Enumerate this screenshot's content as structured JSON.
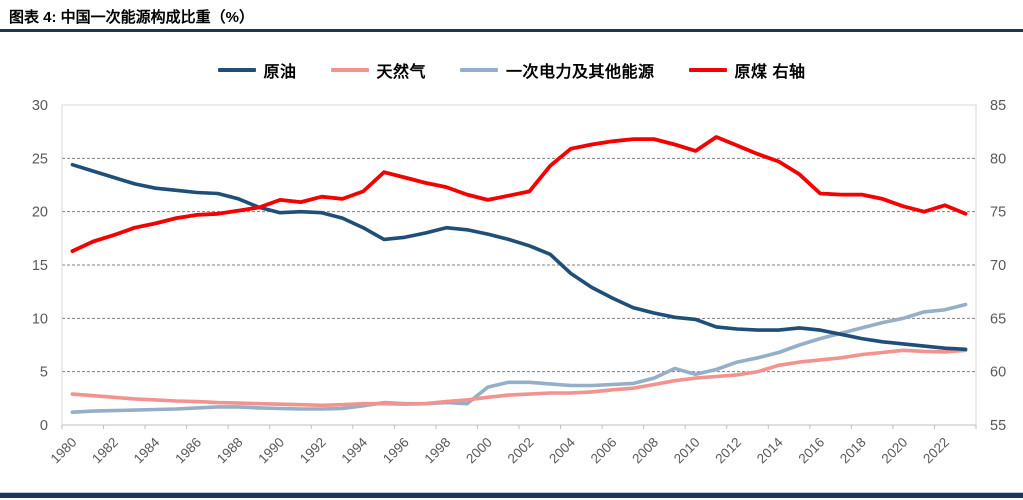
{
  "page": {
    "title": "图表 4: 中国一次能源构成比重（%）",
    "accent_color": "#17375E"
  },
  "chart_data": {
    "type": "line",
    "title": "中国一次能源构成比重（%）",
    "grid": "horizontal-dashed",
    "legend_position": "top-center",
    "text_color": "#595959",
    "frame_color": "#D9D9D9",
    "grid_color": "#7F7F7F",
    "x": [
      1980,
      1981,
      1982,
      1983,
      1984,
      1985,
      1986,
      1987,
      1988,
      1989,
      1990,
      1991,
      1992,
      1993,
      1994,
      1995,
      1996,
      1997,
      1998,
      1999,
      2000,
      2001,
      2002,
      2003,
      2004,
      2005,
      2006,
      2007,
      2008,
      2009,
      2010,
      2011,
      2012,
      2013,
      2014,
      2015,
      2016,
      2017,
      2018,
      2019,
      2020,
      2021,
      2022,
      2023
    ],
    "x_tick_labels": [
      "1980",
      "1982",
      "1984",
      "1986",
      "1988",
      "1990",
      "1992",
      "1994",
      "1996",
      "1998",
      "2000",
      "2002",
      "2004",
      "2006",
      "2008",
      "2010",
      "2012",
      "2014",
      "2016",
      "2018",
      "2020",
      "2022"
    ],
    "left_axis": {
      "min": 0,
      "max": 30,
      "ticks": [
        0,
        5,
        10,
        15,
        20,
        25,
        30
      ]
    },
    "right_axis": {
      "min": 55,
      "max": 85,
      "ticks": [
        55,
        60,
        65,
        70,
        75,
        80,
        85
      ]
    },
    "series": [
      {
        "id": "crude-oil",
        "name": "原油",
        "axis": "left",
        "color": "#1F4E79",
        "width": 3.6,
        "values": [
          24.4,
          23.8,
          23.2,
          22.6,
          22.2,
          22.0,
          21.8,
          21.7,
          21.2,
          20.4,
          19.9,
          20.0,
          19.9,
          19.4,
          18.5,
          17.4,
          17.6,
          18.0,
          18.5,
          18.3,
          17.9,
          17.4,
          16.8,
          16.0,
          14.2,
          12.9,
          11.9,
          11.0,
          10.5,
          10.1,
          9.9,
          9.2,
          9.0,
          8.9,
          8.9,
          9.1,
          8.9,
          8.5,
          8.1,
          7.8,
          7.6,
          7.4,
          7.2,
          7.1
        ]
      },
      {
        "id": "natural-gas",
        "name": "天然气",
        "axis": "left",
        "color": "#F2938F",
        "width": 3.6,
        "values": [
          2.9,
          2.75,
          2.6,
          2.45,
          2.35,
          2.25,
          2.2,
          2.1,
          2.05,
          2.0,
          1.95,
          1.9,
          1.85,
          1.9,
          2.0,
          2.0,
          1.95,
          2.0,
          2.2,
          2.35,
          2.6,
          2.8,
          2.9,
          3.0,
          3.0,
          3.1,
          3.3,
          3.45,
          3.8,
          4.15,
          4.4,
          4.55,
          4.7,
          5.0,
          5.6,
          5.9,
          6.1,
          6.3,
          6.6,
          6.8,
          7.0,
          6.9,
          6.85,
          7.0
        ]
      },
      {
        "id": "primary-electricity",
        "name": "一次电力及其他能源",
        "axis": "left",
        "color": "#95AFC8",
        "width": 3.6,
        "values": [
          1.2,
          1.3,
          1.35,
          1.4,
          1.45,
          1.5,
          1.6,
          1.7,
          1.7,
          1.6,
          1.55,
          1.5,
          1.5,
          1.55,
          1.8,
          2.1,
          2.0,
          2.0,
          2.1,
          2.0,
          3.55,
          4.0,
          4.0,
          3.85,
          3.7,
          3.7,
          3.8,
          3.9,
          4.4,
          5.3,
          4.75,
          5.2,
          5.9,
          6.3,
          6.8,
          7.5,
          8.1,
          8.6,
          9.1,
          9.6,
          10.0,
          10.6,
          10.8,
          11.3
        ]
      },
      {
        "id": "raw-coal",
        "name": "原煤 右轴",
        "axis": "right",
        "color": "#F40000",
        "width": 3.8,
        "values": [
          71.3,
          72.2,
          72.8,
          73.5,
          73.9,
          74.4,
          74.7,
          74.8,
          75.1,
          75.4,
          76.1,
          75.9,
          76.4,
          76.2,
          76.9,
          78.7,
          78.2,
          77.7,
          77.3,
          76.6,
          76.1,
          76.5,
          76.9,
          79.3,
          80.9,
          81.3,
          81.6,
          81.8,
          81.8,
          81.3,
          80.7,
          82.0,
          81.2,
          80.4,
          79.7,
          78.5,
          76.7,
          76.6,
          76.6,
          76.2,
          75.5,
          75.0,
          75.6,
          74.8
        ]
      }
    ]
  }
}
